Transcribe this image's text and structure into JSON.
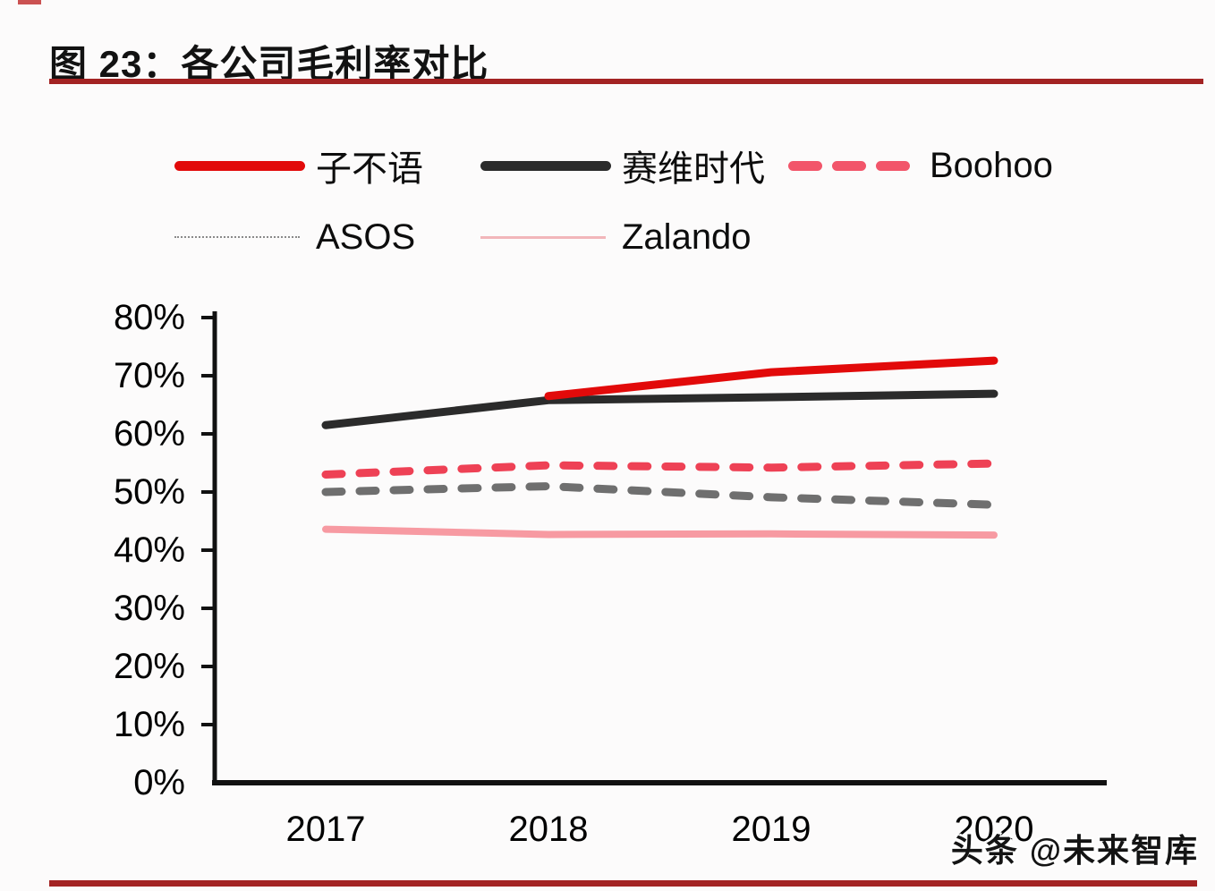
{
  "page": {
    "title": "图 23：各公司毛利率对比",
    "watermark": "头条 @未来智库",
    "accent_rule_color": "#a32323"
  },
  "legend": {
    "items": [
      {
        "label": "子不语",
        "marker": "thick-solid",
        "color": "#e20a0a"
      },
      {
        "label": "赛维时代",
        "marker": "thick-solid",
        "color": "#2b2b2b"
      },
      {
        "label": "Boohoo",
        "marker": "thick-dash",
        "color": "#f2556a"
      },
      {
        "label": "ASOS",
        "marker": "thin-dotted",
        "color": "#8a8a8a"
      },
      {
        "label": "Zalando",
        "marker": "thin-solid",
        "color": "#f2b6ba"
      }
    ]
  },
  "chart_data": {
    "type": "line",
    "title": "各公司毛利率对比",
    "unit": "percent",
    "x_categories": [
      "2017",
      "2018",
      "2019",
      "2020"
    ],
    "yticks": [
      "80%",
      "70%",
      "60%",
      "50%",
      "40%",
      "30%",
      "20%",
      "10%",
      "0%"
    ],
    "ylim": [
      0,
      80
    ],
    "ytick_step": 10,
    "grid": false,
    "legend_position": "top",
    "series": [
      {
        "name": "子不语",
        "color": "#e20a0a",
        "line_style": "solid",
        "x": [
          2018,
          2019,
          2020
        ],
        "values": [
          66.5,
          70.6,
          72.6
        ]
      },
      {
        "name": "赛维时代",
        "color": "#2b2b2b",
        "line_style": "solid",
        "x": [
          2017,
          2018,
          2019,
          2020
        ],
        "values": [
          61.5,
          65.8,
          66.3,
          66.9
        ]
      },
      {
        "name": "Boohoo",
        "color": "#ee4155",
        "line_style": "dashed",
        "x": [
          2017,
          2018,
          2019,
          2020
        ],
        "values": [
          53.0,
          54.6,
          54.2,
          54.9
        ]
      },
      {
        "name": "ASOS",
        "color": "#6f6f6f",
        "line_style": "dashed",
        "x": [
          2017,
          2018,
          2019,
          2020
        ],
        "values": [
          50.0,
          51.0,
          49.1,
          47.8
        ]
      },
      {
        "name": "Zalando",
        "color": "#f79aa2",
        "line_style": "solid",
        "x": [
          2017,
          2018,
          2019,
          2020
        ],
        "values": [
          43.6,
          42.7,
          42.8,
          42.6
        ]
      }
    ]
  }
}
